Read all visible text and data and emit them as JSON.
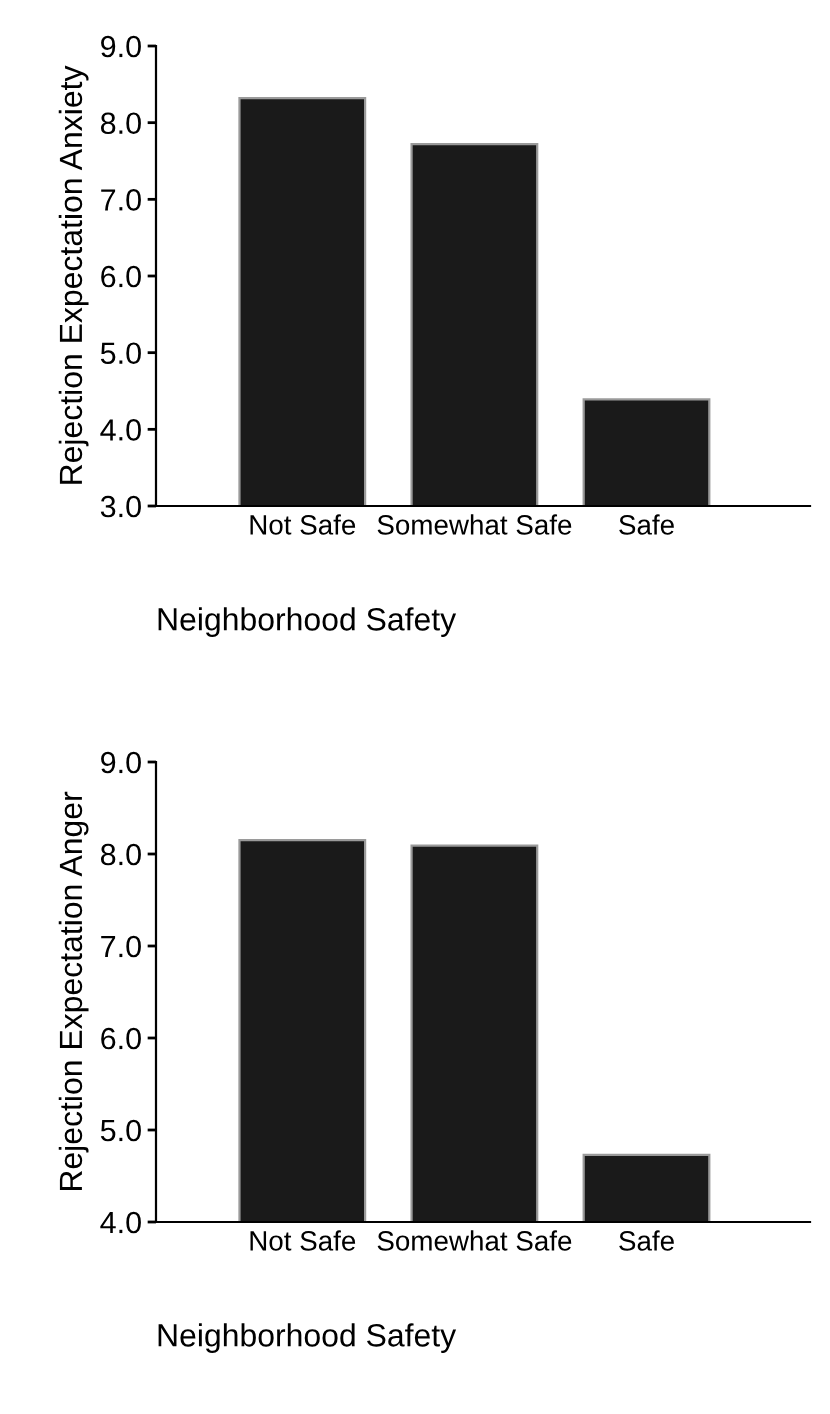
{
  "chart_data": [
    {
      "type": "bar",
      "categories": [
        "Not Safe",
        "Somewhat Safe",
        "Safe"
      ],
      "values": [
        8.32,
        7.72,
        4.39
      ],
      "color": "#1a1a1a",
      "ylabel": "Rejection Expectation Anxiety",
      "xlabel": "Neighborhood Safety",
      "ylim": [
        3.0,
        9.0
      ],
      "yticks": [
        {
          "value": 3,
          "label": "3.0"
        },
        {
          "value": 4,
          "label": "4.0"
        },
        {
          "value": 5,
          "label": "5.0"
        },
        {
          "value": 6,
          "label": "6.0"
        },
        {
          "value": 7,
          "label": "7.0"
        },
        {
          "value": 8,
          "label": "8.0"
        },
        {
          "value": 9,
          "label": "9.0"
        }
      ],
      "grid": false,
      "legend": false
    },
    {
      "type": "bar",
      "categories": [
        "Not Safe",
        "Somewhat Safe",
        "Safe"
      ],
      "values": [
        8.15,
        8.09,
        4.73
      ],
      "color": "#1a1a1a",
      "ylabel": "Rejection Expectation Anger",
      "xlabel": "Neighborhood Safety",
      "ylim": [
        4.0,
        9.0
      ],
      "yticks": [
        {
          "value": 4,
          "label": "4.0"
        },
        {
          "value": 5,
          "label": "5.0"
        },
        {
          "value": 6,
          "label": "6.0"
        },
        {
          "value": 7,
          "label": "7.0"
        },
        {
          "value": 8,
          "label": "8.0"
        },
        {
          "value": 9,
          "label": "9.0"
        }
      ],
      "grid": false,
      "legend": false
    }
  ]
}
